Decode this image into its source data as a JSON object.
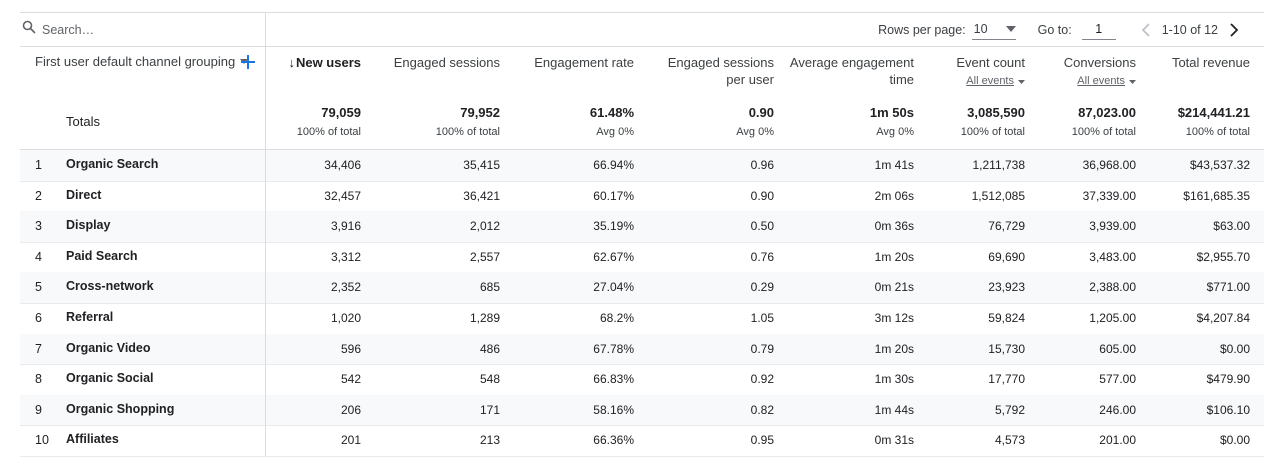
{
  "search": {
    "placeholder": "Search…"
  },
  "pagination": {
    "rows_per_page_label": "Rows per page:",
    "rows_per_page_value": "10",
    "goto_label": "Go to:",
    "goto_value": "1",
    "range_text": "1-10 of 12"
  },
  "dimension_header": "First user default channel grouping",
  "columns": [
    {
      "key": "new_users",
      "label": "New users",
      "sorted": true,
      "sort_arrow": "↓"
    },
    {
      "key": "engaged_sessions",
      "label": "Engaged sessions"
    },
    {
      "key": "engagement_rate",
      "label": "Engagement rate"
    },
    {
      "key": "engaged_per_user",
      "label_line1": "Engaged sessions",
      "label_line2": "per user"
    },
    {
      "key": "avg_engagement_time",
      "label_line1": "Average engagement",
      "label_line2": "time"
    },
    {
      "key": "event_count",
      "label": "Event count",
      "sub": "All events"
    },
    {
      "key": "conversions",
      "label": "Conversions",
      "sub": "All events"
    },
    {
      "key": "total_revenue",
      "label": "Total revenue"
    }
  ],
  "totals": {
    "label": "Totals",
    "cells": [
      {
        "value": "79,059",
        "sub": "100% of total"
      },
      {
        "value": "79,952",
        "sub": "100% of total"
      },
      {
        "value": "61.48%",
        "sub": "Avg 0%"
      },
      {
        "value": "0.90",
        "sub": "Avg 0%"
      },
      {
        "value": "1m 50s",
        "sub": "Avg 0%"
      },
      {
        "value": "3,085,590",
        "sub": "100% of total"
      },
      {
        "value": "87,023.00",
        "sub": "100% of total"
      },
      {
        "value": "$214,441.21",
        "sub": "100% of total"
      }
    ]
  },
  "rows": [
    {
      "index": "1",
      "channel": "Organic Search",
      "cells": [
        "34,406",
        "35,415",
        "66.94%",
        "0.96",
        "1m 41s",
        "1,211,738",
        "36,968.00",
        "$43,537.32"
      ]
    },
    {
      "index": "2",
      "channel": "Direct",
      "cells": [
        "32,457",
        "36,421",
        "60.17%",
        "0.90",
        "2m 06s",
        "1,512,085",
        "37,339.00",
        "$161,685.35"
      ]
    },
    {
      "index": "3",
      "channel": "Display",
      "cells": [
        "3,916",
        "2,012",
        "35.19%",
        "0.50",
        "0m 36s",
        "76,729",
        "3,939.00",
        "$63.00"
      ]
    },
    {
      "index": "4",
      "channel": "Paid Search",
      "cells": [
        "3,312",
        "2,557",
        "62.67%",
        "0.76",
        "1m 20s",
        "69,690",
        "3,483.00",
        "$2,955.70"
      ]
    },
    {
      "index": "5",
      "channel": "Cross-network",
      "cells": [
        "2,352",
        "685",
        "27.04%",
        "0.29",
        "0m 21s",
        "23,923",
        "2,388.00",
        "$771.00"
      ]
    },
    {
      "index": "6",
      "channel": "Referral",
      "cells": [
        "1,020",
        "1,289",
        "68.2%",
        "1.05",
        "3m 12s",
        "59,824",
        "1,205.00",
        "$4,207.84"
      ]
    },
    {
      "index": "7",
      "channel": "Organic Video",
      "cells": [
        "596",
        "486",
        "67.78%",
        "0.79",
        "1m 20s",
        "15,730",
        "605.00",
        "$0.00"
      ]
    },
    {
      "index": "8",
      "channel": "Organic Social",
      "cells": [
        "542",
        "548",
        "66.83%",
        "0.92",
        "1m 30s",
        "17,770",
        "577.00",
        "$479.90"
      ]
    },
    {
      "index": "9",
      "channel": "Organic Shopping",
      "cells": [
        "206",
        "171",
        "58.16%",
        "0.82",
        "1m 44s",
        "5,792",
        "246.00",
        "$106.10"
      ]
    },
    {
      "index": "10",
      "channel": "Affiliates",
      "cells": [
        "201",
        "213",
        "66.36%",
        "0.95",
        "0m 31s",
        "4,573",
        "201.00",
        "$0.00"
      ]
    }
  ],
  "colors": {
    "accent": "#1a73e8",
    "border": "#dadce0",
    "shade": "#f8f9fa"
  }
}
